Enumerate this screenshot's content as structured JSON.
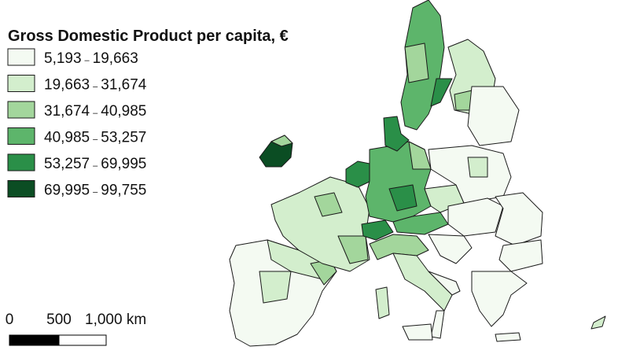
{
  "title": "Gross Domestic Product per capita, €",
  "legend": {
    "separator": "–",
    "classes": [
      {
        "from": "5,193",
        "to": "19,663",
        "color": "#f4faf2"
      },
      {
        "from": "19,663",
        "to": "31,674",
        "color": "#d3eecd"
      },
      {
        "from": "31,674",
        "to": "40,985",
        "color": "#a3d69c"
      },
      {
        "from": "40,985",
        "to": "53,257",
        "color": "#5db56b"
      },
      {
        "from": "53,257",
        "to": "69,995",
        "color": "#2a8f48"
      },
      {
        "from": "69,995",
        "to": "99,755",
        "color": "#0b4d23"
      }
    ]
  },
  "scale_bar": {
    "labels": [
      "0",
      "500",
      "1,000 km"
    ]
  }
}
